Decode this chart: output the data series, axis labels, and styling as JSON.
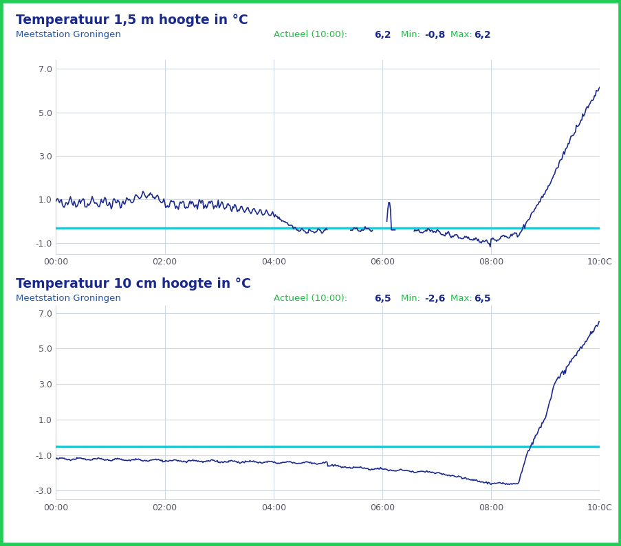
{
  "title1": "Temperatuur 1,5 m hoogte in °C",
  "title2": "Temperatuur 10 cm hoogte in °C",
  "subtitle": "Meetstation Groningen",
  "stats1": "Actueel (10:00):  6,2  Min:  -0,8  Max:  6,2",
  "actueel_label": "Actueel (10:00):",
  "actueel_val1": "6,2",
  "min_val1": "-0,8",
  "max_val1": "6,2",
  "actueel_val2": "6,5",
  "min_val2": "-2,6",
  "max_val2": "6,5",
  "ylim1": [
    -1.5,
    7.4
  ],
  "ylim2": [
    -3.5,
    7.4
  ],
  "yticks1": [
    -1.0,
    1.0,
    3.0,
    5.0,
    7.0
  ],
  "yticks2": [
    -3.0,
    -1.0,
    1.0,
    3.0,
    5.0,
    7.0
  ],
  "xtick_positions": [
    0,
    120,
    240,
    360,
    480,
    600
  ],
  "xtick_labels": [
    "00:00",
    "02:00",
    "04:00",
    "06:00",
    "08:00",
    "10:0C"
  ],
  "cyan_line_y1": -0.3,
  "cyan_line_y2": -0.5,
  "line_color": "#1a2a8c",
  "cyan_color": "#00d4e8",
  "bg_color": "#ffffff",
  "outer_bg": "#ffffff",
  "border_color": "#22cc55",
  "title_color": "#1a2a8c",
  "subtitle_color": "#2255aa",
  "green_color": "#22bb44",
  "bold_color": "#1a2a8c",
  "grid_color": "#d0d8e0",
  "tick_color": "#555566"
}
